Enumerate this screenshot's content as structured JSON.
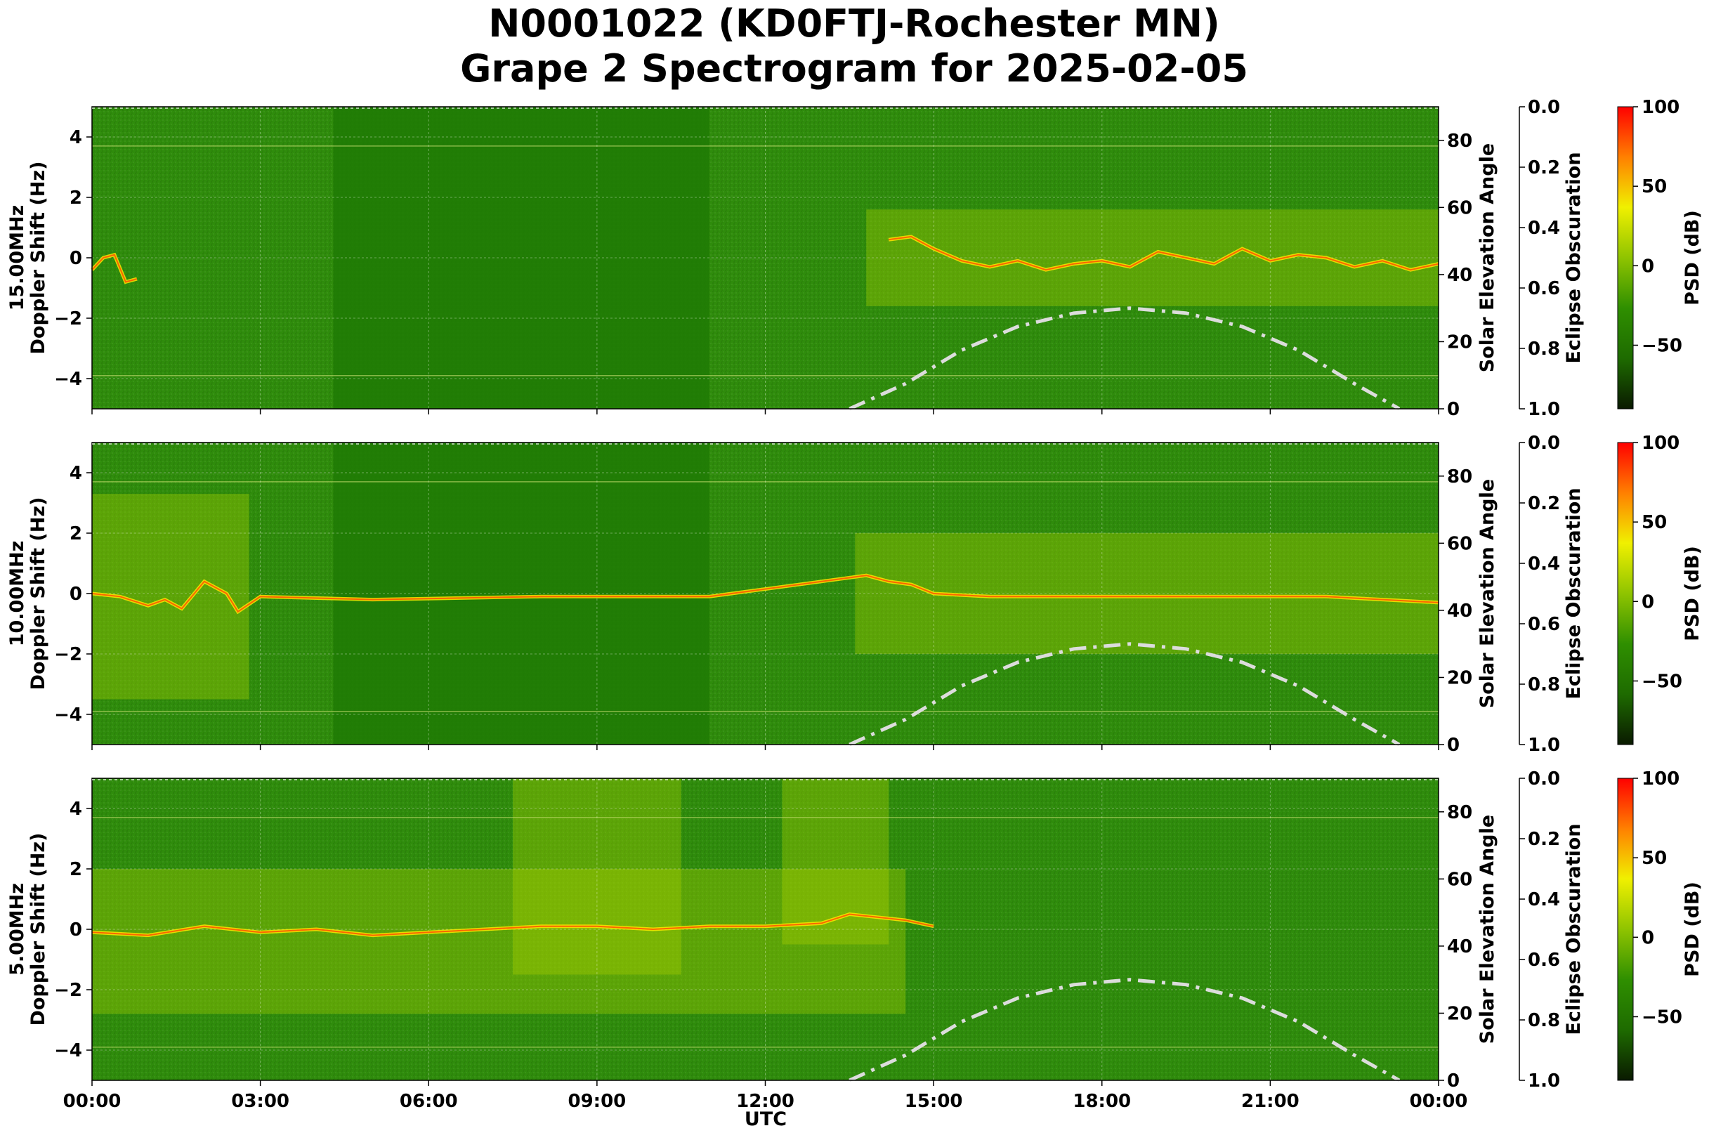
{
  "title_line1": "N0001022 (KD0FTJ-Rochester MN)",
  "title_line2": "Grape 2 Spectrogram for 2025-02-05",
  "chart_data": {
    "type": "heatmap",
    "xlabel": "UTC",
    "x_tick_labels": [
      "00:00",
      "03:00",
      "06:00",
      "09:00",
      "12:00",
      "15:00",
      "18:00",
      "21:00",
      "00:00"
    ],
    "x_range_hours": [
      0,
      24
    ],
    "ylabel": "Doppler Shift (Hz)",
    "ylim": [
      -5,
      5
    ],
    "y_ticks": [
      4,
      2,
      0,
      -2,
      -4
    ],
    "y_tick_labels": [
      "4",
      "2",
      "0",
      "−2",
      "−4"
    ],
    "right_axis": {
      "label": "Solar Elevation Angle",
      "ylim": [
        0,
        90
      ],
      "ticks": [
        0,
        20,
        40,
        60,
        80
      ],
      "tick_labels": [
        "0",
        "20",
        "40",
        "60",
        "80"
      ]
    },
    "eclipse_axis": {
      "label": "Eclipse Obscuration",
      "ylim": [
        1.0,
        0.0
      ],
      "ticks": [
        0.0,
        0.2,
        0.4,
        0.6,
        0.8,
        1.0
      ],
      "tick_labels": [
        "0.0",
        "0.2",
        "0.4",
        "0.6",
        "0.8",
        "1.0"
      ]
    },
    "colorbar": {
      "label": "PSD (dB)",
      "range": [
        -90,
        100
      ],
      "ticks": [
        100,
        50,
        0,
        -50
      ],
      "tick_labels": [
        "100",
        "50",
        "0",
        "−50"
      ],
      "colors": [
        "#0a1a00",
        "#1e6b00",
        "#2f8f00",
        "#8fc400",
        "#f0f000",
        "#ff8000",
        "#ff0000"
      ]
    },
    "solar_elevation": {
      "style": "dash-dot",
      "color": "#dcdcdc",
      "x_hours": [
        13.5,
        14.5,
        15.5,
        16.5,
        17.5,
        18.5,
        19.5,
        20.5,
        21.5,
        22.5,
        23.3
      ],
      "y_degrees": [
        0,
        7.5,
        17.5,
        24.5,
        28.5,
        30,
        28.5,
        24.5,
        17.5,
        7.5,
        0
      ]
    },
    "panels": [
      {
        "name": "15.00MHz",
        "ylabel_line1": "15.00MHz",
        "ylabel_line2": "Doppler Shift (Hz)",
        "trace": {
          "x_hours": [
            0,
            0.2,
            0.4,
            0.6,
            0.8,
            1.0,
            14.2,
            14.6,
            15.0,
            15.5,
            16.0,
            16.5,
            17.0,
            17.5,
            18.0,
            18.5,
            19.0,
            19.5,
            20.0,
            20.5,
            21.0,
            21.5,
            22.0,
            22.5,
            23.0,
            23.5,
            24.0
          ],
          "doppler_hz": [
            -0.4,
            0.0,
            0.1,
            -0.8,
            -0.7,
            null,
            0.6,
            0.7,
            0.3,
            -0.1,
            -0.3,
            -0.1,
            -0.4,
            -0.2,
            -0.1,
            -0.3,
            0.2,
            0.0,
            -0.2,
            0.3,
            -0.1,
            0.1,
            0.0,
            -0.3,
            -0.1,
            -0.4,
            -0.2
          ]
        }
      },
      {
        "name": "10.00MHz",
        "ylabel_line1": "10.00MHz",
        "ylabel_line2": "Doppler Shift (Hz)",
        "trace": {
          "x_hours": [
            0,
            0.5,
            1.0,
            1.3,
            1.6,
            2.0,
            2.4,
            2.6,
            3.0,
            5.0,
            8.0,
            11.0,
            13.8,
            14.2,
            14.6,
            15.0,
            16.0,
            17.0,
            18.0,
            19.0,
            20.0,
            21.0,
            22.0,
            23.0,
            24.0
          ],
          "doppler_hz": [
            0.0,
            -0.1,
            -0.4,
            -0.2,
            -0.5,
            0.4,
            0.0,
            -0.6,
            -0.1,
            -0.2,
            -0.1,
            -0.1,
            0.6,
            0.4,
            0.3,
            0.0,
            -0.1,
            -0.1,
            -0.1,
            -0.1,
            -0.1,
            -0.1,
            -0.1,
            -0.2,
            -0.3
          ]
        }
      },
      {
        "name": "5.00MHz",
        "ylabel_line1": "5.00MHz",
        "ylabel_line2": "Doppler Shift (Hz)",
        "trace": {
          "x_hours": [
            0,
            1.0,
            2.0,
            3.0,
            4.0,
            5.0,
            6.0,
            7.0,
            8.0,
            9.0,
            10.0,
            11.0,
            12.0,
            13.0,
            13.5,
            14.0,
            14.5,
            15.0
          ],
          "doppler_hz": [
            -0.1,
            -0.2,
            0.1,
            -0.1,
            0.0,
            -0.2,
            -0.1,
            0.0,
            0.1,
            0.1,
            0.0,
            0.1,
            0.1,
            0.2,
            0.5,
            0.4,
            0.3,
            0.1
          ]
        }
      }
    ]
  }
}
